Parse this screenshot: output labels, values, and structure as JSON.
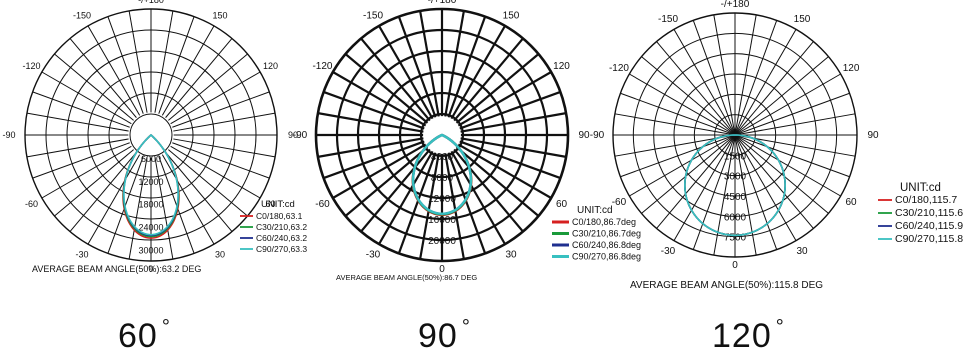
{
  "chart_data": [
    {
      "type": "polar",
      "unit": "UNIT:cd",
      "angle_labels": [
        "-/+180",
        "-150",
        "150",
        "-120",
        "120",
        "-90",
        "90",
        "-60",
        "60",
        "-30",
        "30",
        "0"
      ],
      "radial_labels": [
        "6000",
        "12000",
        "18000",
        "24000",
        "30000"
      ],
      "rlim": [
        0,
        33000
      ],
      "series": [
        {
          "name": "C0/180,63.1",
          "color": "#d62020",
          "peak": 27000,
          "beam_angle": 63.1
        },
        {
          "name": "C30/210,63.2",
          "color": "#1a9a3a",
          "peak": 26600,
          "beam_angle": 63.2
        },
        {
          "name": "C60/240,63.2",
          "color": "#1f2f8f",
          "peak": 26300,
          "beam_angle": 63.2
        },
        {
          "name": "C90/270,63.3",
          "color": "#38c0c0",
          "peak": 26100,
          "beam_angle": 63.3
        }
      ],
      "caption": "AVERAGE BEAM ANGLE(50%):63.2 DEG",
      "big_label": "60"
    },
    {
      "type": "polar",
      "unit": "UNIT:cd",
      "angle_labels": [
        "-/+180",
        "-150",
        "150",
        "-120",
        "120",
        "-90",
        "90",
        "-60",
        "60",
        "-30",
        "30",
        "0"
      ],
      "radial_labels": [
        "4000",
        "8000",
        "12000",
        "16000",
        "20000"
      ],
      "rlim": [
        0,
        24000
      ],
      "series": [
        {
          "name": "C0/180,86.7deg",
          "color": "#d62020",
          "peak": 15200,
          "beam_angle": 86.7
        },
        {
          "name": "C30/210,86.7deg",
          "color": "#1a9a3a",
          "peak": 15100,
          "beam_angle": 86.7
        },
        {
          "name": "C60/240,86.8deg",
          "color": "#1f2f8f",
          "peak": 15000,
          "beam_angle": 86.8
        },
        {
          "name": "C90/270,86.8deg",
          "color": "#38c0c0",
          "peak": 15000,
          "beam_angle": 86.8
        }
      ],
      "caption": "AVERAGE BEAM ANGLE(50%):86.7 DEG",
      "big_label": "90"
    },
    {
      "type": "polar",
      "unit": "UNIT:cd",
      "angle_labels": [
        "-/+180",
        "-150",
        "150",
        "-120",
        "120",
        "-90",
        "90",
        "-60",
        "60",
        "-30",
        "30",
        "0"
      ],
      "radial_labels": [
        "1500",
        "3000",
        "4500",
        "6000",
        "7500"
      ],
      "rlim": [
        0,
        9000
      ],
      "series": [
        {
          "name": "C0/180,115.7",
          "color": "#d62020",
          "peak": 7400,
          "beam_angle": 115.7
        },
        {
          "name": "C30/210,115.6",
          "color": "#1a9a3a",
          "peak": 7400,
          "beam_angle": 115.6
        },
        {
          "name": "C60/240,115.9",
          "color": "#1f2f8f",
          "peak": 7400,
          "beam_angle": 115.9
        },
        {
          "name": "C90/270,115.8",
          "color": "#38c0c0",
          "peak": 7400,
          "beam_angle": 115.8
        }
      ],
      "caption": "AVERAGE BEAM ANGLE(50%):115.8 DEG",
      "big_label": "120"
    }
  ],
  "degree_symbol": "°"
}
